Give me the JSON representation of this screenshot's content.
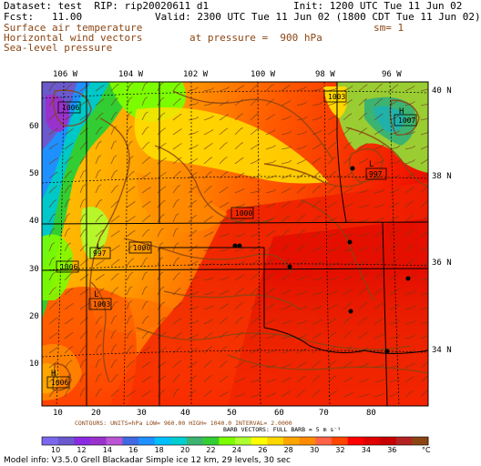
{
  "header": {
    "dataset": "Dataset: test  RIP: rip20020611 d1",
    "init": "Init: 1200 UTC Tue 11 Jun 02",
    "fcst": "Fcst:   11.00",
    "valid": "Valid: 2300 UTC Tue 11 Jun 02 (1800 CDT Tue 11 Jun 02)",
    "field1": "Surface air temperature",
    "sm": "sm= 1",
    "field2": "Horizontal wind vectors",
    "pressure": "at pressure =  900 hPa",
    "field3": "Sea-level pressure"
  },
  "map": {
    "lon_labels": [
      "106 W",
      "104 W",
      "102 W",
      "100 W",
      "98 W",
      "96 W"
    ],
    "lat_labels": [
      "40 N",
      "38 N",
      "36 N",
      "34 N"
    ],
    "x_ticks": [
      "10",
      "20",
      "30",
      "40",
      "50",
      "60",
      "70",
      "80"
    ],
    "y_ticks": [
      "10",
      "20",
      "30",
      "40",
      "50",
      "60"
    ],
    "pressure_labels": [
      "1006",
      "1006",
      "997",
      "1000",
      "1006",
      "1003",
      "997",
      "1000",
      "1007",
      "1003"
    ],
    "center_markers": [
      "L",
      "L",
      "L",
      "H",
      "H"
    ]
  },
  "footer": {
    "contours": "CONTOURS:  UNITS=hPa   LOW=  960.00      HIGH=  1040.0      INTERVAL=     2.0000",
    "barbs": "BARB VECTORS:  FULL BARB = 5 m s⁻¹",
    "model_info": "Model info: V3.5.0  Grell    Blackadar  Simple ice    12 km, 29 levels,   30 sec"
  },
  "colorbar": {
    "labels": [
      "10",
      "12",
      "14",
      "16",
      "18",
      "20",
      "22",
      "24",
      "26",
      "28",
      "30",
      "32",
      "34",
      "36"
    ],
    "unit": "°C",
    "colors": [
      "#7b68ee",
      "#6a5acd",
      "#8a2be2",
      "#9932cc",
      "#ba55d3",
      "#4169e1",
      "#1e90ff",
      "#00bfff",
      "#00ced1",
      "#3cb371",
      "#32cd32",
      "#7cfc00",
      "#adff2f",
      "#ffff00",
      "#ffd700",
      "#ffa500",
      "#ff8c00",
      "#ff6347",
      "#ff4500",
      "#ff0000",
      "#e00000",
      "#c80000",
      "#b22222",
      "#8b4513"
    ]
  }
}
